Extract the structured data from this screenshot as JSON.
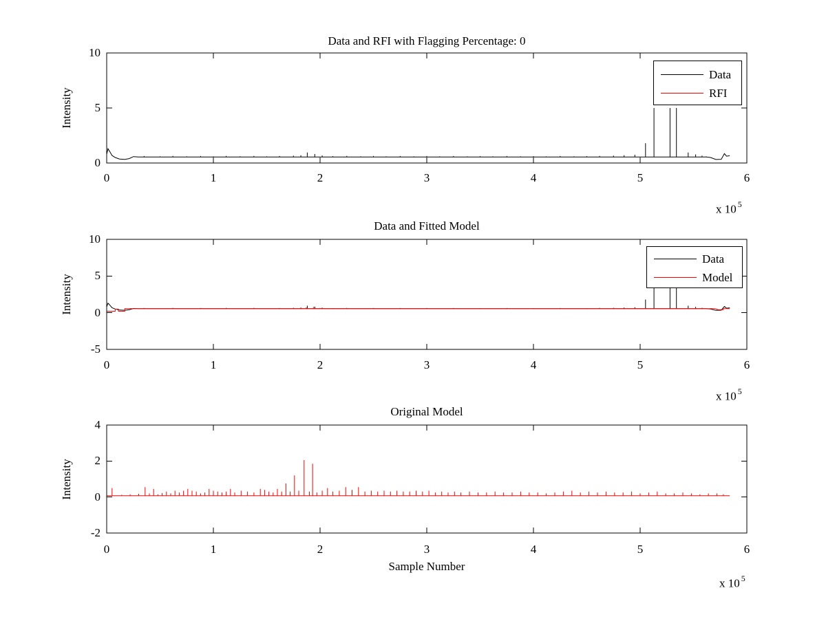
{
  "figure": {
    "background": "#ffffff",
    "text_color": "#000000"
  },
  "chart_data": [
    {
      "type": "line",
      "title": "Data and RFI with Flagging Percentage: 0",
      "xlabel": "",
      "ylabel": "Intensity",
      "xlim": [
        0,
        6
      ],
      "ylim": [
        0,
        10
      ],
      "xticks": [
        0,
        1,
        2,
        3,
        4,
        5,
        6
      ],
      "yticks": [
        0,
        5,
        10
      ],
      "x_exponent": {
        "multiplier_text": "x 10",
        "exponent": "5"
      },
      "grid": false,
      "legend": {
        "position": "top-right",
        "entries": [
          {
            "label": "Data",
            "color": "#000000"
          },
          {
            "label": "RFI",
            "color": "#ff0000"
          }
        ]
      },
      "series": [
        {
          "name": "Data",
          "color": "#000000",
          "baseline": 0.55,
          "range": [
            0,
            5.84
          ],
          "profile_start": [
            [
              0.0,
              0.8
            ],
            [
              0.012,
              1.3
            ],
            [
              0.03,
              1.02
            ],
            [
              0.05,
              0.68
            ],
            [
              0.08,
              0.5
            ],
            [
              0.12,
              0.36
            ],
            [
              0.17,
              0.33
            ],
            [
              0.21,
              0.4
            ],
            [
              0.25,
              0.58
            ],
            [
              0.3,
              0.55
            ]
          ],
          "spikes": [
            [
              0.35,
              0.63
            ],
            [
              0.5,
              0.6
            ],
            [
              0.62,
              0.64
            ],
            [
              0.75,
              0.6
            ],
            [
              0.88,
              0.63
            ],
            [
              1.0,
              0.6
            ],
            [
              1.12,
              0.64
            ],
            [
              1.25,
              0.61
            ],
            [
              1.38,
              0.64
            ],
            [
              1.5,
              0.6
            ],
            [
              1.62,
              0.63
            ],
            [
              1.75,
              0.66
            ],
            [
              1.82,
              0.7
            ],
            [
              1.88,
              0.95
            ],
            [
              1.95,
              0.82
            ],
            [
              2.02,
              0.68
            ],
            [
              2.12,
              0.62
            ],
            [
              2.25,
              0.64
            ],
            [
              2.38,
              0.6
            ],
            [
              2.5,
              0.63
            ],
            [
              2.62,
              0.6
            ],
            [
              2.75,
              0.63
            ],
            [
              2.88,
              0.6
            ],
            [
              3.0,
              0.63
            ],
            [
              3.12,
              0.6
            ],
            [
              3.25,
              0.63
            ],
            [
              3.38,
              0.6
            ],
            [
              3.5,
              0.62
            ],
            [
              3.62,
              0.6
            ],
            [
              3.75,
              0.63
            ],
            [
              3.88,
              0.6
            ],
            [
              4.0,
              0.62
            ],
            [
              4.12,
              0.6
            ],
            [
              4.25,
              0.63
            ],
            [
              4.38,
              0.6
            ],
            [
              4.5,
              0.62
            ],
            [
              4.62,
              0.64
            ],
            [
              4.75,
              0.66
            ],
            [
              4.85,
              0.7
            ],
            [
              4.95,
              0.75
            ],
            [
              5.05,
              1.8
            ],
            [
              5.13,
              5.0
            ],
            [
              5.28,
              5.0
            ],
            [
              5.34,
              5.0
            ],
            [
              5.45,
              0.95
            ],
            [
              5.52,
              0.78
            ],
            [
              5.58,
              0.66
            ],
            [
              5.62,
              0.6
            ]
          ],
          "profile_end": [
            [
              5.66,
              0.5
            ],
            [
              5.71,
              0.32
            ],
            [
              5.76,
              0.34
            ],
            [
              5.79,
              0.85
            ],
            [
              5.81,
              0.62
            ],
            [
              5.84,
              0.66
            ]
          ]
        },
        {
          "name": "RFI",
          "color": "#ff0000",
          "baseline": 0.0,
          "range": [
            0,
            5.84
          ],
          "spikes": []
        }
      ]
    },
    {
      "type": "line",
      "title": "Data and Fitted Model",
      "xlabel": "",
      "ylabel": "Intensity",
      "xlim": [
        0,
        6
      ],
      "ylim": [
        -5,
        10
      ],
      "xticks": [
        0,
        1,
        2,
        3,
        4,
        5,
        6
      ],
      "yticks": [
        -5,
        0,
        5,
        10
      ],
      "x_exponent": {
        "multiplier_text": "x 10",
        "exponent": "5"
      },
      "grid": false,
      "legend": {
        "position": "top-right",
        "entries": [
          {
            "label": "Data",
            "color": "#000000"
          },
          {
            "label": "Model",
            "color": "#ff0000"
          }
        ]
      },
      "series": [
        {
          "name": "Data",
          "color": "#000000",
          "baseline": 0.55,
          "range": [
            0,
            5.84
          ],
          "profile_start": [
            [
              0.0,
              0.8
            ],
            [
              0.012,
              1.3
            ],
            [
              0.03,
              1.02
            ],
            [
              0.05,
              0.68
            ],
            [
              0.08,
              0.5
            ],
            [
              0.12,
              0.36
            ],
            [
              0.17,
              0.33
            ],
            [
              0.21,
              0.4
            ],
            [
              0.25,
              0.58
            ],
            [
              0.3,
              0.55
            ]
          ],
          "spikes": [
            [
              0.35,
              0.63
            ],
            [
              0.5,
              0.6
            ],
            [
              0.62,
              0.64
            ],
            [
              0.75,
              0.6
            ],
            [
              0.88,
              0.63
            ],
            [
              1.0,
              0.6
            ],
            [
              1.12,
              0.64
            ],
            [
              1.25,
              0.61
            ],
            [
              1.38,
              0.64
            ],
            [
              1.5,
              0.6
            ],
            [
              1.62,
              0.63
            ],
            [
              1.75,
              0.66
            ],
            [
              1.82,
              0.7
            ],
            [
              1.88,
              0.95
            ],
            [
              1.95,
              0.82
            ],
            [
              2.02,
              0.68
            ],
            [
              2.12,
              0.62
            ],
            [
              2.25,
              0.64
            ],
            [
              2.38,
              0.6
            ],
            [
              2.5,
              0.63
            ],
            [
              2.62,
              0.6
            ],
            [
              2.75,
              0.63
            ],
            [
              2.88,
              0.6
            ],
            [
              3.0,
              0.63
            ],
            [
              3.12,
              0.6
            ],
            [
              3.25,
              0.63
            ],
            [
              3.38,
              0.6
            ],
            [
              3.5,
              0.62
            ],
            [
              3.62,
              0.6
            ],
            [
              3.75,
              0.63
            ],
            [
              3.88,
              0.6
            ],
            [
              4.0,
              0.62
            ],
            [
              4.12,
              0.6
            ],
            [
              4.25,
              0.63
            ],
            [
              4.38,
              0.6
            ],
            [
              4.5,
              0.62
            ],
            [
              4.62,
              0.64
            ],
            [
              4.75,
              0.66
            ],
            [
              4.85,
              0.7
            ],
            [
              4.95,
              0.75
            ],
            [
              5.05,
              1.8
            ],
            [
              5.13,
              5.0
            ],
            [
              5.28,
              5.0
            ],
            [
              5.34,
              5.0
            ],
            [
              5.45,
              0.95
            ],
            [
              5.52,
              0.78
            ],
            [
              5.58,
              0.66
            ],
            [
              5.62,
              0.6
            ]
          ],
          "profile_end": [
            [
              5.66,
              0.5
            ],
            [
              5.71,
              0.32
            ],
            [
              5.76,
              0.34
            ],
            [
              5.79,
              0.85
            ],
            [
              5.81,
              0.62
            ],
            [
              5.84,
              0.66
            ]
          ]
        },
        {
          "name": "Model",
          "color": "#ff0000",
          "baseline": 0.55,
          "range": [
            0,
            5.84
          ],
          "profile_start": [
            [
              0.0,
              0.2
            ],
            [
              0.08,
              0.2
            ],
            [
              0.08,
              0.48
            ],
            [
              0.11,
              0.48
            ],
            [
              0.11,
              0.2
            ],
            [
              0.17,
              0.2
            ],
            [
              0.17,
              0.55
            ]
          ],
          "spikes": [
            [
              1.87,
              0.72
            ],
            [
              1.94,
              0.78
            ],
            [
              2.0,
              0.65
            ],
            [
              4.3,
              0.62
            ],
            [
              5.6,
              0.6
            ]
          ],
          "profile_end": [
            [
              5.7,
              0.55
            ],
            [
              5.73,
              0.42
            ],
            [
              5.78,
              0.42
            ],
            [
              5.78,
              0.55
            ],
            [
              5.84,
              0.55
            ]
          ]
        }
      ]
    },
    {
      "type": "line",
      "title": "Original Model",
      "xlabel": "Sample Number",
      "ylabel": "Intensity",
      "xlim": [
        0,
        6
      ],
      "ylim": [
        -2,
        4
      ],
      "xticks": [
        0,
        1,
        2,
        3,
        4,
        5,
        6
      ],
      "yticks": [
        -2,
        0,
        2,
        4
      ],
      "x_exponent": {
        "multiplier_text": "x 10",
        "exponent": "5"
      },
      "grid": false,
      "legend": null,
      "series": [
        {
          "name": "Model",
          "color": "#ff0000",
          "baseline": 0.07,
          "range": [
            0,
            5.84
          ],
          "spikes": [
            [
              0.05,
              0.5
            ],
            [
              0.14,
              0.12
            ],
            [
              0.22,
              0.15
            ],
            [
              0.3,
              0.18
            ],
            [
              0.36,
              0.55
            ],
            [
              0.4,
              0.2
            ],
            [
              0.44,
              0.45
            ],
            [
              0.48,
              0.15
            ],
            [
              0.52,
              0.22
            ],
            [
              0.56,
              0.3
            ],
            [
              0.6,
              0.2
            ],
            [
              0.64,
              0.35
            ],
            [
              0.68,
              0.25
            ],
            [
              0.72,
              0.35
            ],
            [
              0.76,
              0.45
            ],
            [
              0.8,
              0.35
            ],
            [
              0.84,
              0.3
            ],
            [
              0.88,
              0.2
            ],
            [
              0.92,
              0.25
            ],
            [
              0.96,
              0.45
            ],
            [
              1.0,
              0.35
            ],
            [
              1.04,
              0.3
            ],
            [
              1.08,
              0.25
            ],
            [
              1.12,
              0.3
            ],
            [
              1.16,
              0.45
            ],
            [
              1.2,
              0.25
            ],
            [
              1.26,
              0.35
            ],
            [
              1.32,
              0.3
            ],
            [
              1.38,
              0.25
            ],
            [
              1.44,
              0.45
            ],
            [
              1.48,
              0.4
            ],
            [
              1.52,
              0.3
            ],
            [
              1.56,
              0.25
            ],
            [
              1.6,
              0.45
            ],
            [
              1.64,
              0.3
            ],
            [
              1.68,
              0.75
            ],
            [
              1.72,
              0.3
            ],
            [
              1.76,
              1.2
            ],
            [
              1.8,
              0.35
            ],
            [
              1.85,
              2.05
            ],
            [
              1.9,
              0.3
            ],
            [
              1.93,
              1.85
            ],
            [
              1.97,
              0.25
            ],
            [
              2.02,
              0.35
            ],
            [
              2.07,
              0.5
            ],
            [
              2.12,
              0.3
            ],
            [
              2.18,
              0.35
            ],
            [
              2.24,
              0.55
            ],
            [
              2.3,
              0.4
            ],
            [
              2.36,
              0.55
            ],
            [
              2.42,
              0.3
            ],
            [
              2.48,
              0.35
            ],
            [
              2.54,
              0.3
            ],
            [
              2.6,
              0.35
            ],
            [
              2.66,
              0.3
            ],
            [
              2.72,
              0.35
            ],
            [
              2.78,
              0.3
            ],
            [
              2.84,
              0.3
            ],
            [
              2.9,
              0.35
            ],
            [
              2.96,
              0.3
            ],
            [
              3.02,
              0.35
            ],
            [
              3.08,
              0.25
            ],
            [
              3.14,
              0.3
            ],
            [
              3.2,
              0.25
            ],
            [
              3.26,
              0.3
            ],
            [
              3.32,
              0.25
            ],
            [
              3.4,
              0.3
            ],
            [
              3.48,
              0.25
            ],
            [
              3.56,
              0.25
            ],
            [
              3.64,
              0.3
            ],
            [
              3.72,
              0.25
            ],
            [
              3.8,
              0.25
            ],
            [
              3.88,
              0.3
            ],
            [
              3.96,
              0.25
            ],
            [
              4.04,
              0.25
            ],
            [
              4.12,
              0.2
            ],
            [
              4.2,
              0.25
            ],
            [
              4.28,
              0.3
            ],
            [
              4.36,
              0.35
            ],
            [
              4.44,
              0.25
            ],
            [
              4.52,
              0.3
            ],
            [
              4.6,
              0.25
            ],
            [
              4.68,
              0.3
            ],
            [
              4.76,
              0.25
            ],
            [
              4.84,
              0.25
            ],
            [
              4.92,
              0.3
            ],
            [
              5.0,
              0.2
            ],
            [
              5.08,
              0.25
            ],
            [
              5.16,
              0.3
            ],
            [
              5.24,
              0.2
            ],
            [
              5.32,
              0.2
            ],
            [
              5.4,
              0.25
            ],
            [
              5.48,
              0.2
            ],
            [
              5.56,
              0.15
            ],
            [
              5.64,
              0.2
            ],
            [
              5.72,
              0.2
            ],
            [
              5.78,
              0.15
            ]
          ]
        }
      ]
    }
  ]
}
